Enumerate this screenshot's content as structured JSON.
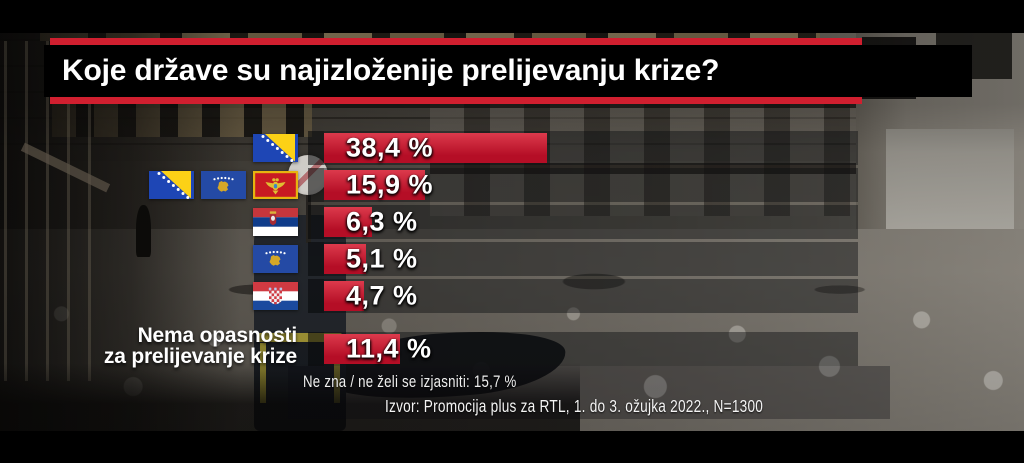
{
  "title": "Koje države su najizloženije prelijevanju krize?",
  "chart_data": {
    "type": "bar",
    "orientation": "horizontal",
    "value_unit": "%",
    "rows": [
      {
        "flags": [
          "bosnia-and-herzegovina"
        ],
        "value": 38.4,
        "value_label": "38,4 %"
      },
      {
        "flags": [
          "bosnia-and-herzegovina",
          "kosovo",
          "montenegro"
        ],
        "value": 15.9,
        "value_label": "15,9 %"
      },
      {
        "flags": [
          "serbia"
        ],
        "value": 6.3,
        "value_label": "6,3 %"
      },
      {
        "flags": [
          "kosovo"
        ],
        "value": 5.1,
        "value_label": "5,1 %"
      },
      {
        "flags": [
          "croatia"
        ],
        "value": 4.7,
        "value_label": "4,7 %"
      },
      {
        "flags": [],
        "label_lines": [
          "Nema opasnosti",
          "za prelijevanje krize"
        ],
        "value": 11.4,
        "value_label": "11,4 %"
      }
    ],
    "footnote": "Ne zna / ne želi se izjasniti: 15,7 %",
    "source": "Izvor: Promocija plus za RTL, 1. do 3. ožujka 2022., N=1300",
    "legend": "none",
    "grid": false
  },
  "theme": {
    "strip_red": "#d01f2f",
    "bar_red_top": "#dc3a4c",
    "bar_red_bottom": "#b50e26",
    "title_bg": "#000000",
    "text_color": "#ffffff",
    "track_color": "rgba(12,13,16,0.44)"
  }
}
